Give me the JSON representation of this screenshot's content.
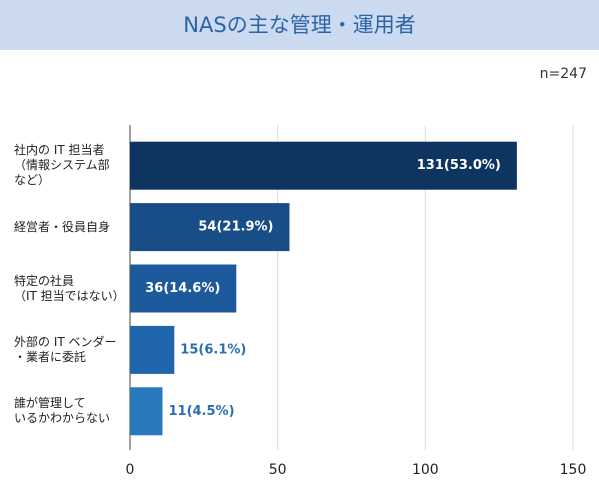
{
  "chart_data": {
    "type": "barh",
    "title": "NASの主な管理・運用者",
    "note": "n=247",
    "categories": [
      "社内の IT 担当者\n（情報システム部\nなど）",
      "経営者・役員自身",
      "特定の社員\n（IT 担当ではない）",
      "外部の IT ベンダー\n・業者に委託",
      "誰が管理して\nいるかわからない"
    ],
    "values": [
      131,
      54,
      36,
      15,
      11
    ],
    "value_labels": [
      "131(53.0%)",
      "54(21.9%)",
      "36(14.6%)",
      "15(6.1%)",
      "11(4.5%)"
    ],
    "colors": [
      "#0e3560",
      "#184d88",
      "#1c5a9c",
      "#2066ad",
      "#2a79bd"
    ],
    "xlim": [
      0,
      150
    ],
    "xticks": [
      0,
      50,
      100,
      150
    ],
    "grid": true
  }
}
